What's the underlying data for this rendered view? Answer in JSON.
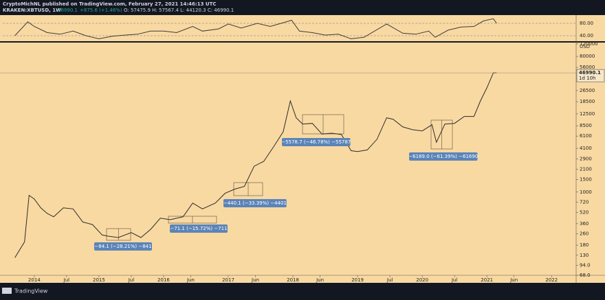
{
  "header": {
    "publisher": "CryptoMichNL published on TradingView.com, February 27, 2021 14:46:13 UTC",
    "symbol": "KRAKEN:XBTUSD, 1W",
    "last": "46990.1",
    "change": "+875.6 (+1.46%)",
    "ohlc": "O: 57475.9  H: 57567.4  L: 44120.3  C: 46990.1",
    "countdown": "1d 10h",
    "currency": "USD",
    "brand": "TradingView"
  },
  "chart_data": [
    {
      "type": "line",
      "log_scale": true,
      "color": "#2b2b2b",
      "x": [
        2013.7,
        2013.85,
        2013.92,
        2014.0,
        2014.1,
        2014.2,
        2014.3,
        2014.45,
        2014.6,
        2014.75,
        2014.9,
        2015.05,
        2015.15,
        2015.3,
        2015.5,
        2015.65,
        2015.8,
        2015.95,
        2016.1,
        2016.3,
        2016.45,
        2016.6,
        2016.8,
        2016.95,
        2017.1,
        2017.25,
        2017.4,
        2017.55,
        2017.7,
        2017.85,
        2017.96,
        2018.05,
        2018.15,
        2018.3,
        2018.45,
        2018.6,
        2018.75,
        2018.9,
        2019.0,
        2019.15,
        2019.3,
        2019.45,
        2019.55,
        2019.7,
        2019.85,
        2020.0,
        2020.15,
        2020.22,
        2020.35,
        2020.5,
        2020.65,
        2020.8,
        2020.9,
        2021.0,
        2021.1,
        2021.15
      ],
      "values": [
        120,
        200,
        900,
        800,
        600,
        500,
        450,
        600,
        580,
        380,
        350,
        250,
        240,
        230,
        270,
        230,
        300,
        430,
        410,
        450,
        700,
        580,
        700,
        960,
        1100,
        1200,
        2300,
        2700,
        4300,
        7000,
        19000,
        11000,
        9000,
        9200,
        6500,
        6700,
        6400,
        3800,
        3700,
        3900,
        5500,
        11000,
        10500,
        8200,
        7500,
        7200,
        8800,
        5000,
        9000,
        9200,
        11500,
        11500,
        19000,
        29000,
        47000,
        46990.1
      ],
      "xlim": [
        2013.47,
        2022.38
      ],
      "xticks": [
        2014,
        {
          "value": 2014.5,
          "label": "Jul"
        },
        2015,
        {
          "value": 2015.5,
          "label": "Jul"
        },
        2016,
        {
          "value": 2016.42,
          "label": "Jun"
        },
        2017,
        {
          "value": 2017.42,
          "label": "Jun"
        },
        2018,
        {
          "value": 2018.42,
          "label": "Jun"
        },
        2019,
        {
          "value": 2019.5,
          "label": "Jul"
        },
        2020,
        {
          "value": 2020.5,
          "label": "Jul"
        },
        2021,
        {
          "value": 2021.42,
          "label": "Jun"
        },
        2022
      ],
      "ylim": [
        68,
        125000
      ],
      "yticks": [
        120000,
        80000,
        56000,
        26500,
        18500,
        12500,
        8500,
        6100,
        4100,
        2900,
        2100,
        1500,
        1000,
        720,
        520,
        360,
        260,
        180,
        130,
        {
          "value": 94,
          "label": "94.0"
        },
        {
          "value": 68,
          "label": "68.0"
        }
      ],
      "annotations": [
        "−84.1 (−28.21%) −841",
        "−71.1 (−15.72%) −711",
        "−440.1 (−33.39%) −4401",
        "−5578.7 (−46.78%) −55787",
        "−6169.0 (−61.39%) −61690"
      ]
    },
    {
      "type": "line",
      "color": "#3b3b3b",
      "x": [
        2013.7,
        2013.9,
        2014.0,
        2014.2,
        2014.4,
        2014.6,
        2014.8,
        2015.0,
        2015.2,
        2015.4,
        2015.6,
        2015.8,
        2016.0,
        2016.2,
        2016.45,
        2016.6,
        2016.85,
        2017.0,
        2017.2,
        2017.45,
        2017.65,
        2017.85,
        2017.98,
        2018.1,
        2018.3,
        2018.5,
        2018.7,
        2018.9,
        2019.1,
        2019.45,
        2019.7,
        2019.9,
        2020.1,
        2020.2,
        2020.4,
        2020.6,
        2020.8,
        2020.95,
        2021.1,
        2021.15
      ],
      "values": [
        40,
        85,
        70,
        50,
        45,
        55,
        40,
        30,
        38,
        42,
        45,
        55,
        55,
        50,
        70,
        55,
        62,
        78,
        65,
        80,
        70,
        82,
        90,
        55,
        50,
        42,
        45,
        30,
        35,
        78,
        48,
        45,
        55,
        35,
        58,
        68,
        70,
        88,
        95,
        80
      ],
      "ylim": [
        20,
        100
      ],
      "yticks": [
        {
          "value": 80,
          "label": "80.00"
        },
        {
          "value": 40,
          "label": "40.00"
        }
      ]
    }
  ]
}
